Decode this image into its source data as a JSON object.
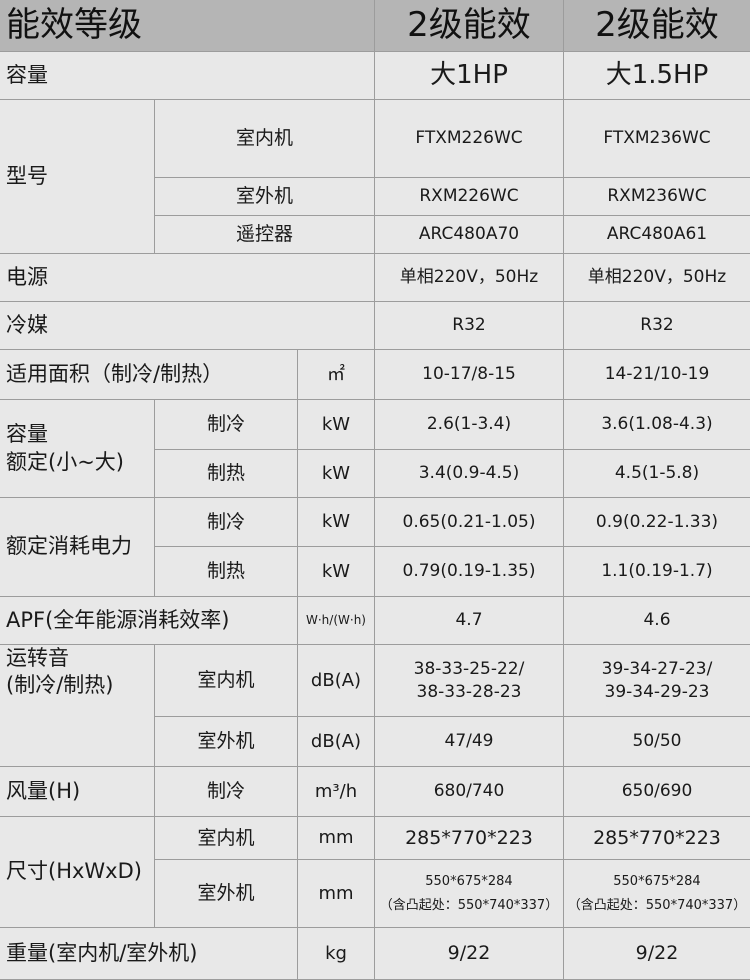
{
  "header": {
    "label": "能效等级",
    "models": [
      "2级能效",
      "2级能效"
    ]
  },
  "capacity": {
    "label": "容量",
    "values": [
      "大1HP",
      "大1.5HP"
    ]
  },
  "model": {
    "label": "型号",
    "indoor": {
      "label": "室内机",
      "values": [
        "FTXM226WC",
        "FTXM236WC"
      ]
    },
    "outdoor": {
      "label": "室外机",
      "values": [
        "RXM226WC",
        "RXM236WC"
      ]
    },
    "remote": {
      "label": "遥控器",
      "values": [
        "ARC480A70",
        "ARC480A61"
      ]
    }
  },
  "power": {
    "label": "电源",
    "values": [
      "单相220V，50Hz",
      "单相220V，50Hz"
    ]
  },
  "refrigerant": {
    "label": "冷媒",
    "values": [
      "R32",
      "R32"
    ]
  },
  "area": {
    "label": "适用面积（制冷/制热）",
    "unit": "㎡",
    "values": [
      "10-17/8-15",
      "14-21/10-19"
    ]
  },
  "rated_capacity": {
    "label1": "容量",
    "label2": "额定(小~大)",
    "cool": {
      "label": "制冷",
      "unit": "kW",
      "values": [
        "2.6(1-3.4)",
        "3.6(1.08-4.3)"
      ]
    },
    "heat": {
      "label": "制热",
      "unit": "kW",
      "values": [
        "3.4(0.9-4.5)",
        "4.5(1-5.8)"
      ]
    }
  },
  "rated_power": {
    "label": "额定消耗电力",
    "cool": {
      "label": "制冷",
      "unit": "kW",
      "values": [
        "0.65(0.21-1.05)",
        "0.9(0.22-1.33)"
      ]
    },
    "heat": {
      "label": "制热",
      "unit": "kW",
      "values": [
        "0.79(0.19-1.35)",
        "1.1(0.19-1.7)"
      ]
    }
  },
  "apf": {
    "label": "APF(全年能源消耗效率)",
    "unit": "W·h/(W·h)",
    "values": [
      "4.7",
      "4.6"
    ]
  },
  "noise": {
    "label1": "运转音",
    "label2": "(制冷/制热)",
    "indoor": {
      "label": "室内机",
      "unit": "dB(A)",
      "values": [
        [
          "38-33-25-22/",
          "38-33-28-23"
        ],
        [
          "39-34-27-23/",
          "39-34-29-23"
        ]
      ]
    },
    "outdoor": {
      "label": "室外机",
      "unit": "dB(A)",
      "values": [
        "47/49",
        "50/50"
      ]
    }
  },
  "airflow": {
    "label": "风量(H)",
    "sub": "制冷",
    "unit": "m³/h",
    "values": [
      "680/740",
      "650/690"
    ]
  },
  "size": {
    "label": "尺寸(HxWxD)",
    "indoor": {
      "label": "室内机",
      "unit": "mm",
      "values": [
        "285*770*223",
        "285*770*223"
      ]
    },
    "outdoor": {
      "label": "室外机",
      "unit": "mm",
      "values": [
        [
          "550*675*284",
          "（含凸起处：550*740*337）"
        ],
        [
          "550*675*284",
          "（含凸起处：550*740*337）"
        ]
      ]
    }
  },
  "weight": {
    "label": "重量(室内机/室外机)",
    "unit": "kg",
    "values": [
      "9/22",
      "9/22"
    ]
  }
}
